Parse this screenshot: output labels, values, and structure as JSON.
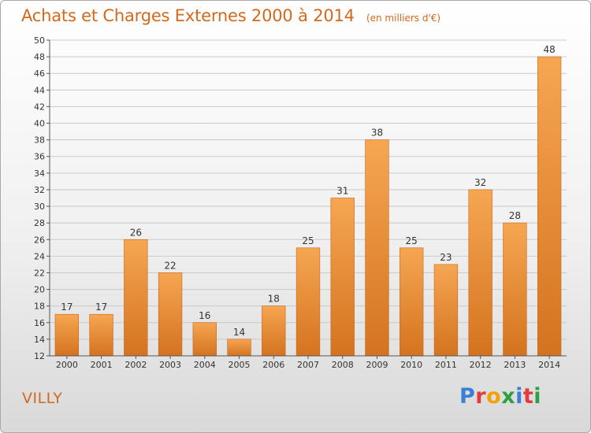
{
  "header": {
    "title": "Achats et Charges Externes 2000 à 2014",
    "unit_note": "(en milliers d'€)"
  },
  "commune_name": "VILLY",
  "logo": {
    "text": "Proxiti",
    "letter_colors": [
      "#3a7fd5",
      "#e23b3b",
      "#f2a100",
      "#2ea043",
      "#3a7fd5",
      "#e23b3b",
      "#2ea043"
    ]
  },
  "colors": {
    "bar_light": "#f6a652",
    "bar_dark": "#d4731f",
    "grid": "#c9c9c9",
    "axis_text": "#333333",
    "accent": "#d2691e"
  },
  "chart_data": {
    "type": "bar",
    "title": "Achats et Charges Externes 2000 à 2014",
    "subtitle": "(en milliers d'€)",
    "xlabel": "",
    "ylabel": "",
    "categories": [
      "2000",
      "2001",
      "2002",
      "2003",
      "2004",
      "2005",
      "2006",
      "2007",
      "2008",
      "2009",
      "2010",
      "2011",
      "2012",
      "2013",
      "2014"
    ],
    "values": [
      17,
      17,
      26,
      22,
      16,
      14,
      18,
      25,
      31,
      38,
      25,
      23,
      32,
      28,
      48
    ],
    "ylim": [
      12,
      50
    ],
    "yticks": [
      12,
      14,
      16,
      18,
      20,
      22,
      24,
      26,
      28,
      30,
      32,
      34,
      36,
      38,
      40,
      42,
      44,
      46,
      48,
      50
    ],
    "grid": true,
    "data_labels": true
  }
}
